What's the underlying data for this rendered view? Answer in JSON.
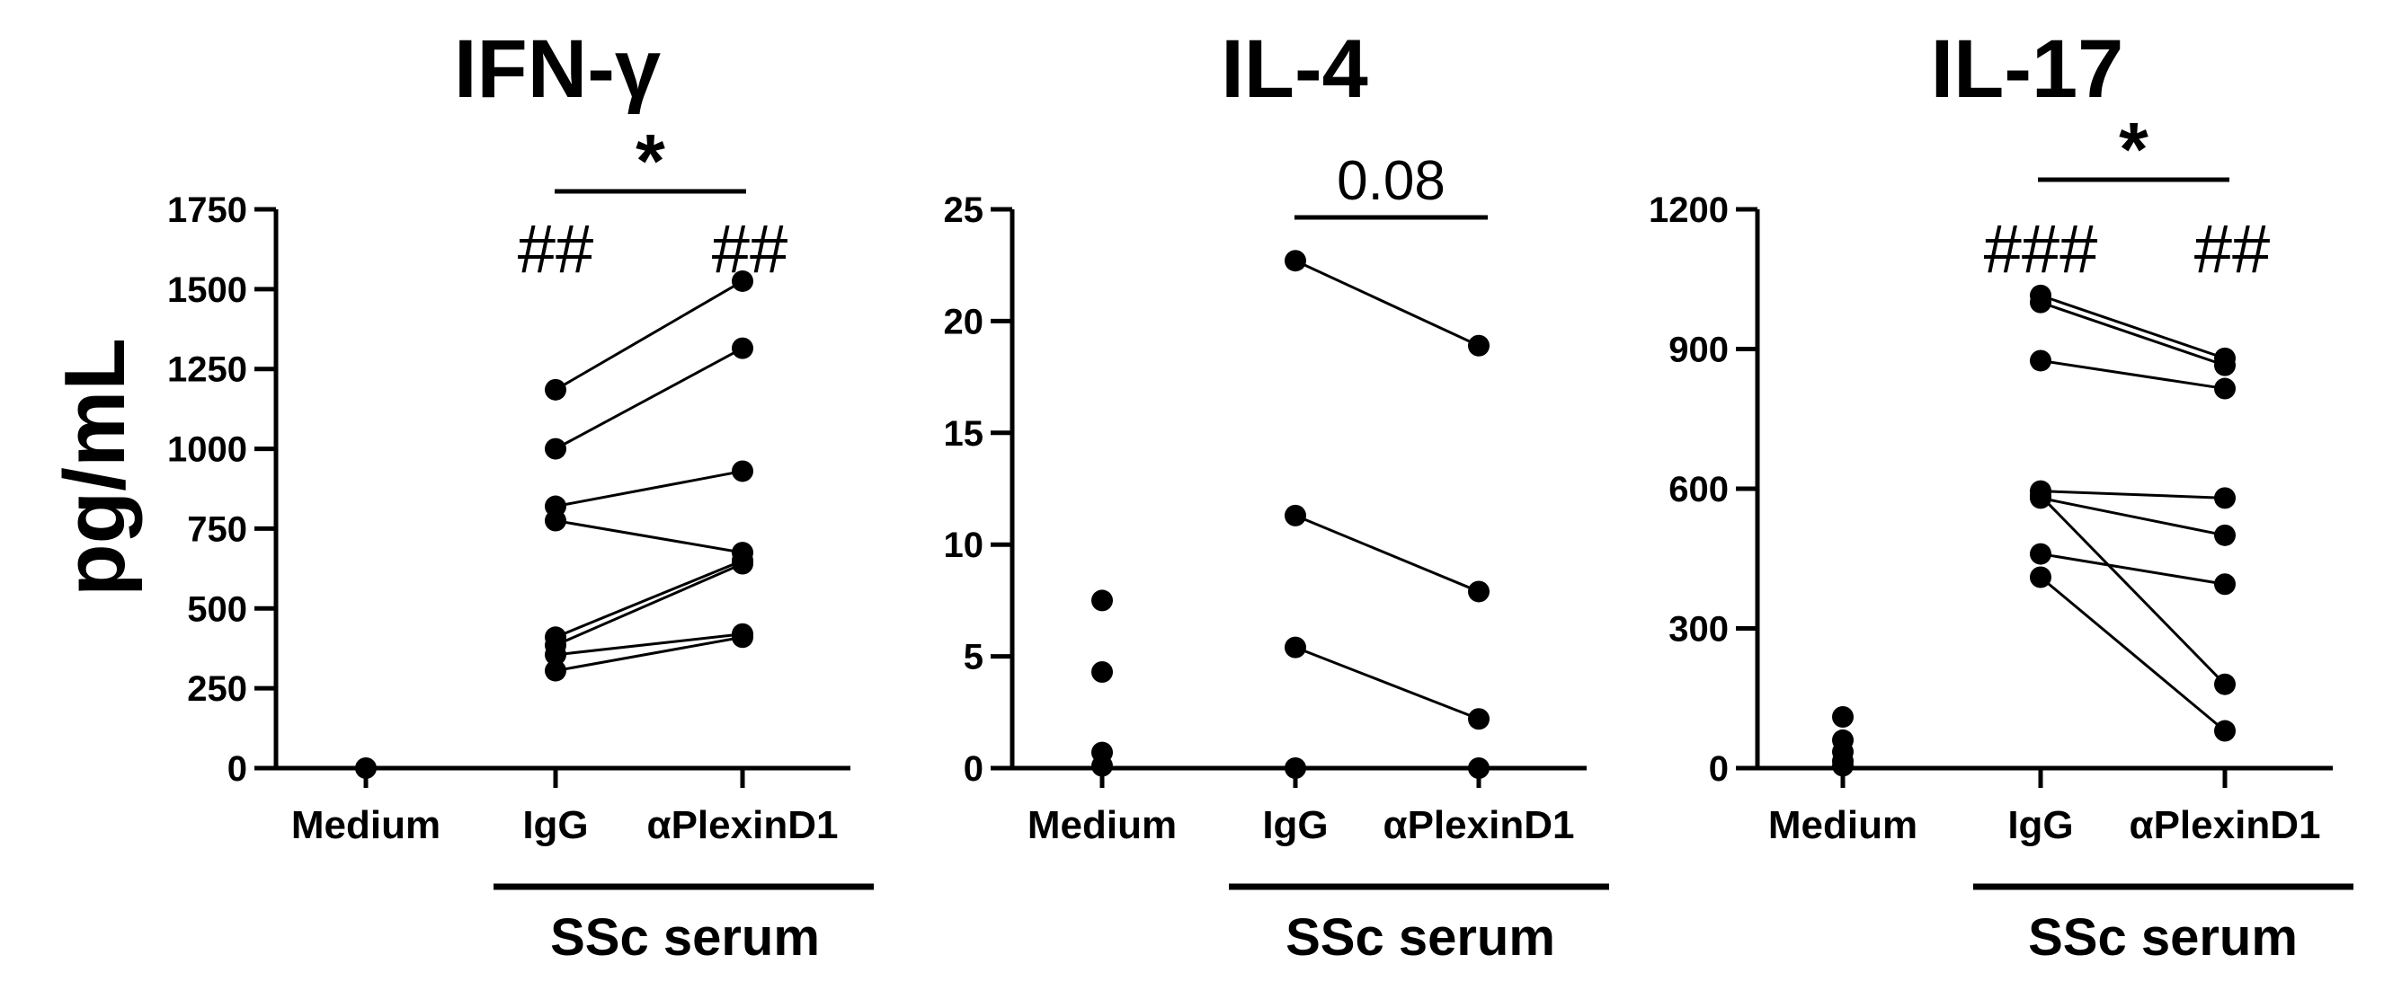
{
  "chart_data": [
    {
      "type": "scatter",
      "title": "IFN-γ",
      "ylabel": "pg/mL",
      "ylim": [
        0,
        1750
      ],
      "yticks": [
        0,
        250,
        500,
        750,
        1000,
        1250,
        1500,
        1750
      ],
      "categories": [
        "Medium",
        "IgG",
        "αPlexinD1"
      ],
      "group_label": "SSc serum",
      "medium_values": [
        0
      ],
      "pairs": [
        [
          1185,
          1525
        ],
        [
          1000,
          1315
        ],
        [
          820,
          930
        ],
        [
          775,
          675
        ],
        [
          410,
          650
        ],
        [
          385,
          640
        ],
        [
          355,
          420
        ],
        [
          305,
          410
        ]
      ],
      "significance": "*",
      "igg_marker": "##",
      "plexin_marker": "##"
    },
    {
      "type": "scatter",
      "title": "IL-4",
      "ylabel": "",
      "ylim": [
        0,
        25
      ],
      "yticks": [
        0,
        5,
        10,
        15,
        20,
        25
      ],
      "categories": [
        "Medium",
        "IgG",
        "αPlexinD1"
      ],
      "group_label": "SSc serum",
      "medium_values": [
        7.5,
        4.3,
        0.7,
        0.1
      ],
      "pairs": [
        [
          22.7,
          18.9
        ],
        [
          11.3,
          7.9
        ],
        [
          5.4,
          2.2
        ],
        [
          0,
          0
        ]
      ],
      "significance": "0.08",
      "igg_marker": "",
      "plexin_marker": ""
    },
    {
      "type": "scatter",
      "title": "IL-17",
      "ylabel": "",
      "ylim": [
        0,
        1200
      ],
      "yticks": [
        0,
        300,
        600,
        900,
        1200
      ],
      "categories": [
        "Medium",
        "IgG",
        "αPlexinD1"
      ],
      "group_label": "SSc serum",
      "medium_values": [
        110,
        60,
        35,
        15,
        5
      ],
      "pairs": [
        [
          1015,
          880
        ],
        [
          1000,
          865
        ],
        [
          875,
          815
        ],
        [
          595,
          580
        ],
        [
          580,
          500
        ],
        [
          585,
          180
        ],
        [
          460,
          395
        ],
        [
          410,
          80
        ]
      ],
      "significance": "*",
      "igg_marker": "###",
      "plexin_marker": "##"
    }
  ]
}
